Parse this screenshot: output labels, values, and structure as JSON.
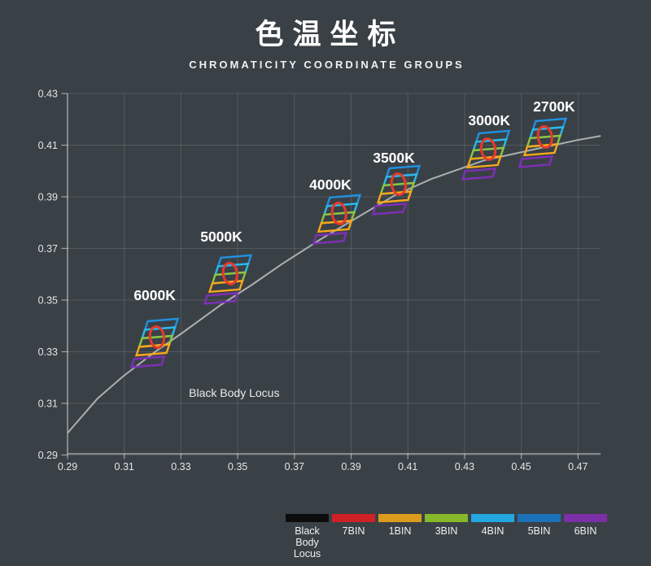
{
  "header": {
    "title": "色温坐标",
    "subtitle": "CHROMATICITY COORDINATE GROUPS"
  },
  "chart_data": {
    "type": "scatter",
    "title": "色温坐标",
    "subtitle": "CHROMATICITY COORDINATE GROUPS",
    "x_axis": {
      "ticks": [
        0.29,
        0.31,
        0.33,
        0.35,
        0.37,
        0.39,
        0.41,
        0.43,
        0.45,
        0.47
      ],
      "range": [
        0.29,
        0.478
      ]
    },
    "y_axis": {
      "ticks": [
        0.29,
        0.31,
        0.33,
        0.35,
        0.37,
        0.39,
        0.41,
        0.43
      ],
      "range": [
        0.29,
        0.43
      ]
    },
    "grid": true,
    "legend_position": "bottom-right",
    "locus": {
      "label": "Black Body Locus",
      "points": [
        [
          0.29,
          0.2985
        ],
        [
          0.3006,
          0.3119
        ],
        [
          0.3095,
          0.3204
        ],
        [
          0.3207,
          0.3298
        ],
        [
          0.3302,
          0.3371
        ],
        [
          0.344,
          0.3481
        ],
        [
          0.3551,
          0.356
        ],
        [
          0.3655,
          0.3639
        ],
        [
          0.3789,
          0.3733
        ],
        [
          0.3876,
          0.379
        ],
        [
          0.4054,
          0.3906
        ],
        [
          0.4183,
          0.3969
        ],
        [
          0.4369,
          0.4041
        ],
        [
          0.4556,
          0.4086
        ],
        [
          0.4699,
          0.412
        ],
        [
          0.478,
          0.4136
        ]
      ]
    },
    "annotation": {
      "text": "Black Body Locus",
      "x": 0.3328,
      "y": 0.3125
    },
    "groups": [
      {
        "label": "6000K",
        "x": 0.3216,
        "y": 0.3352,
        "label_offset": [
          -3,
          -53
        ]
      },
      {
        "label": "5000K",
        "x": 0.3474,
        "y": 0.3598,
        "label_offset": [
          -11,
          -47
        ]
      },
      {
        "label": "4000K",
        "x": 0.3858,
        "y": 0.3831,
        "label_offset": [
          -11,
          -37
        ]
      },
      {
        "label": "3500K",
        "x": 0.4068,
        "y": 0.3944,
        "label_offset": [
          -6,
          -34
        ]
      },
      {
        "label": "3000K",
        "x": 0.4384,
        "y": 0.408,
        "label_offset": [
          1,
          -37
        ]
      },
      {
        "label": "2700K",
        "x": 0.4584,
        "y": 0.4127,
        "label_offset": [
          11,
          -39
        ]
      }
    ],
    "bin_glyph_colors": {
      "bin7_red": "#e8392b",
      "bin1_orange": "#f8a81c",
      "bin3_green": "#8dc63f",
      "bin4_cyan": "#2cb9ea",
      "bin5_blue": "#2191e0",
      "bin6_purple": "#7e2fb8"
    },
    "legend": [
      {
        "label": "Black Body Locus",
        "color": "#0c0c0c"
      },
      {
        "label": "7BIN",
        "color": "#cf2026"
      },
      {
        "label": "1BIN",
        "color": "#dd9b1e"
      },
      {
        "label": "3BIN",
        "color": "#86b829"
      },
      {
        "label": "4BIN",
        "color": "#22a7e0"
      },
      {
        "label": "5BIN",
        "color": "#1b72b8"
      },
      {
        "label": "6BIN",
        "color": "#7c2fa6"
      }
    ],
    "colors": {
      "background": "#3a4146",
      "gridline": "rgba(255,255,255,0.13)",
      "axis": "rgba(255,255,255,0.50)",
      "tick_label": "#e3e5e6",
      "curve": "#b5b8ba",
      "group_label": "#ffffff"
    }
  }
}
